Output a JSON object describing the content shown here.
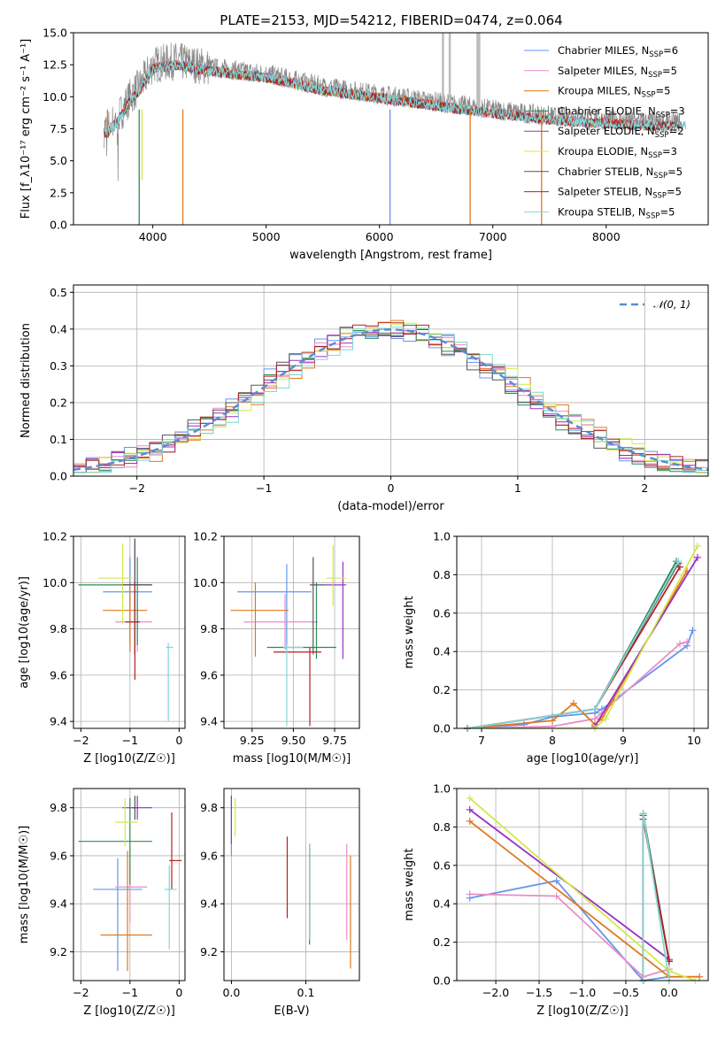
{
  "colors": [
    "#6495ed",
    "#e88ec8",
    "#e0781e",
    "#2e8b57",
    "#9b30c0",
    "#d4e84a",
    "#555555",
    "#b22222",
    "#7fd8d8"
  ],
  "title": "PLATE=2153, MJD=54212, FIBERID=0474, z=0.064",
  "chart_data": [
    {
      "id": "spectrum",
      "type": "line",
      "xlabel": "wavelength [Angstrom, rest frame]",
      "ylabel": "Flux [f_λ10⁻¹⁷ erg cm⁻² s⁻¹ A⁻¹]",
      "xlim": [
        3300,
        8900
      ],
      "ylim": [
        0,
        15
      ],
      "xticks": [
        4000,
        5000,
        6000,
        7000,
        8000
      ],
      "yticks": [
        0.0,
        2.5,
        5.0,
        7.5,
        10.0,
        12.5,
        15.0
      ],
      "grid": false,
      "legend_position": "top-right",
      "legend": [
        "Chabrier MILES, N_SSP=6",
        "Salpeter MILES, N_SSP=5",
        "Kroupa MILES, N_SSP=5",
        "Chabrier ELODIE, N_SSP=3",
        "Salpeter ELODIE, N_SSP=2",
        "Kroupa ELODIE, N_SSP=3",
        "Chabrier STELIB, N_SSP=5",
        "Salpeter STELIB, N_SSP=5",
        "Kroupa STELIB, N_SSP=5"
      ],
      "data_shape": {
        "x": [
          3600,
          3700,
          3800,
          3900,
          4000,
          4200,
          4500,
          5000,
          5500,
          6000,
          6500,
          7000,
          7500,
          8000,
          8500,
          8650
        ],
        "y": [
          7.5,
          8.5,
          10.0,
          11.0,
          12.5,
          12.8,
          12.3,
          11.8,
          10.8,
          10.2,
          9.6,
          9.0,
          8.5,
          8.2,
          8.0,
          8.0
        ]
      },
      "model_ranges": [
        {
          "x": [
            3570,
            8400
          ]
        },
        {
          "x": [
            3570,
            8400
          ]
        },
        {
          "x": [
            3570,
            8400
          ]
        },
        {
          "x": [
            4000,
            6800
          ]
        },
        {
          "x": [
            4000,
            6800
          ]
        },
        {
          "x": [
            4000,
            6800
          ]
        },
        {
          "x": [
            3570,
            8700
          ]
        },
        {
          "x": [
            3570,
            8700
          ]
        },
        {
          "x": [
            3570,
            8700
          ]
        }
      ]
    },
    {
      "id": "residuals",
      "type": "histogram",
      "xlabel": "(data-model)/error",
      "ylabel": "Normed distribution",
      "xlim": [
        -2.5,
        2.5
      ],
      "ylim": [
        0,
        0.52
      ],
      "xticks": [
        -2,
        -1,
        0,
        1,
        2
      ],
      "yticks": [
        0.0,
        0.1,
        0.2,
        0.3,
        0.4,
        0.5
      ],
      "grid": true,
      "legend_position": "top-right",
      "legend": [
        "𝒩(0, 1)"
      ],
      "reference_curve": "normal(0,1)"
    },
    {
      "id": "age-vs-Z",
      "type": "errorbar",
      "xlabel": "Z [log10(Z/Z☉)]",
      "ylabel": "age [log10(age/yr)]",
      "xlim": [
        -2.15,
        0.12
      ],
      "ylim": [
        9.37,
        10.2
      ],
      "xticks": [
        -2,
        -1,
        0
      ],
      "yticks": [
        9.4,
        9.6,
        9.8,
        10.0,
        10.2
      ],
      "grid": true,
      "points": [
        {
          "x": -1.0,
          "y": 9.96,
          "xerr": [
            0.55,
            0.45
          ],
          "yerr": [
            0.22,
            0.15
          ]
        },
        {
          "x": -0.85,
          "y": 9.83,
          "xerr": [
            0.45,
            0.3
          ],
          "yerr": [
            0.13,
            0.1
          ]
        },
        {
          "x": -1.0,
          "y": 9.88,
          "xerr": [
            0.55,
            0.35
          ],
          "yerr": [
            0.18,
            0.1
          ]
        },
        {
          "x": -0.85,
          "y": 9.99,
          "xerr": [
            1.2,
            0.3
          ],
          "yerr": [
            0.26,
            0.12
          ]
        },
        {
          "x": -0.9,
          "y": 9.99,
          "xerr": [
            0.25,
            0.15
          ],
          "yerr": [
            0.3,
            0.2
          ]
        },
        {
          "x": -1.15,
          "y": 10.02,
          "xerr": [
            0.5,
            0.2
          ],
          "yerr": [
            0.2,
            0.15
          ]
        },
        {
          "x": -0.9,
          "y": 9.99,
          "xerr": [
            0.25,
            0.35
          ],
          "yerr": [
            0.3,
            0.2
          ]
        },
        {
          "x": -0.9,
          "y": 9.83,
          "xerr": [
            0.2,
            0.1
          ],
          "yerr": [
            0.25,
            0.17
          ]
        },
        {
          "x": -0.22,
          "y": 9.72,
          "xerr": [
            0.05,
            0.1
          ],
          "yerr": [
            0.32,
            0.02
          ]
        }
      ]
    },
    {
      "id": "age-vs-mass",
      "type": "errorbar",
      "xlabel": "mass [log10(M/M☉)]",
      "ylabel": "",
      "xlim": [
        9.08,
        9.9
      ],
      "ylim": [
        9.37,
        10.2
      ],
      "xticks": [
        9.25,
        9.5,
        9.75
      ],
      "yticks": [
        9.4,
        9.6,
        9.8,
        10.0,
        10.2
      ],
      "grid": true,
      "points": [
        {
          "x": 9.46,
          "y": 9.96,
          "xerr": [
            0.3,
            0.15
          ],
          "yerr": [
            0.25,
            0.12
          ]
        },
        {
          "x": 9.45,
          "y": 9.83,
          "xerr": [
            0.25,
            0.2
          ],
          "yerr": [
            0.12,
            0.12
          ]
        },
        {
          "x": 9.27,
          "y": 9.88,
          "xerr": [
            0.15,
            0.2
          ],
          "yerr": [
            0.2,
            0.12
          ]
        },
        {
          "x": 9.64,
          "y": 9.72,
          "xerr": [
            0.3,
            0.12
          ],
          "yerr": [
            0.05,
            0.28
          ]
        },
        {
          "x": 9.8,
          "y": 9.99,
          "xerr": [
            0.1,
            0.02
          ],
          "yerr": [
            0.32,
            0.1
          ]
        },
        {
          "x": 9.74,
          "y": 10.02,
          "xerr": [
            0.04,
            0.08
          ],
          "yerr": [
            0.12,
            0.14
          ]
        },
        {
          "x": 9.62,
          "y": 9.99,
          "xerr": [
            0.02,
            0.08
          ],
          "yerr": [
            0.3,
            0.12
          ]
        },
        {
          "x": 9.6,
          "y": 9.7,
          "xerr": [
            0.22,
            0.07
          ],
          "yerr": [
            0.32,
            0.02
          ]
        },
        {
          "x": 9.46,
          "y": 9.72,
          "xerr": [
            0.02,
            0.1
          ],
          "yerr": [
            0.34,
            0.01
          ]
        }
      ]
    },
    {
      "id": "weight-vs-age",
      "type": "line",
      "xlabel": "age [log10(age/yr)]",
      "ylabel": "mass weight",
      "xlim": [
        6.65,
        10.2
      ],
      "ylim": [
        0,
        1.0
      ],
      "xticks": [
        7,
        8,
        9,
        10
      ],
      "yticks": [
        0.0,
        0.2,
        0.4,
        0.6,
        0.8,
        1.0
      ],
      "grid": true,
      "series": [
        {
          "x": [
            6.8,
            7.6,
            8.0,
            8.6,
            8.7,
            9.9,
            9.98
          ],
          "y": [
            0.0,
            0.02,
            0.06,
            0.08,
            0.1,
            0.43,
            0.51
          ]
        },
        {
          "x": [
            6.8,
            8.0,
            8.6,
            8.7,
            9.8,
            9.9
          ],
          "y": [
            0.0,
            0.01,
            0.05,
            0.08,
            0.44,
            0.45
          ]
        },
        {
          "x": [
            6.8,
            8.0,
            8.3,
            8.6,
            8.7,
            9.9
          ],
          "y": [
            0.0,
            0.04,
            0.13,
            0.02,
            0.05,
            0.82
          ]
        },
        {
          "x": [
            6.8,
            8.6,
            9.75
          ],
          "y": [
            0.0,
            0.1,
            0.87
          ]
        },
        {
          "x": [
            8.6,
            10.05
          ],
          "y": [
            0.01,
            0.89
          ]
        },
        {
          "x": [
            6.8,
            8.6,
            8.75,
            10.05
          ],
          "y": [
            0.0,
            0.0,
            0.05,
            0.95
          ]
        },
        {
          "x": [
            6.8,
            8.6,
            9.78
          ],
          "y": [
            0.0,
            0.1,
            0.86
          ]
        },
        {
          "x": [
            6.8,
            8.6,
            9.8
          ],
          "y": [
            0.0,
            0.1,
            0.84
          ]
        },
        {
          "x": [
            6.8,
            8.6,
            9.78
          ],
          "y": [
            0.0,
            0.1,
            0.87
          ]
        }
      ]
    },
    {
      "id": "mass-vs-Z",
      "type": "errorbar",
      "xlabel": "Z [log10(Z/Z☉)]",
      "ylabel": "mass [log10(M/M☉)]",
      "xlim": [
        -2.15,
        0.12
      ],
      "ylim": [
        9.08,
        9.88
      ],
      "xticks": [
        -2,
        -1,
        0
      ],
      "yticks": [
        9.2,
        9.4,
        9.6,
        9.8
      ],
      "grid": true,
      "points": [
        {
          "x": -1.25,
          "y": 9.46,
          "xerr": [
            0.5,
            0.5
          ],
          "yerr": [
            0.34,
            0.13
          ]
        },
        {
          "x": -1.0,
          "y": 9.47,
          "xerr": [
            0.3,
            0.35
          ],
          "yerr": [
            0.15,
            0.15
          ]
        },
        {
          "x": -1.05,
          "y": 9.27,
          "xerr": [
            0.55,
            0.5
          ],
          "yerr": [
            0.15,
            0.35
          ]
        },
        {
          "x": -1.0,
          "y": 9.66,
          "xerr": [
            1.05,
            0.45
          ],
          "yerr": [
            0.18,
            0.18
          ]
        },
        {
          "x": -0.85,
          "y": 9.8,
          "xerr": [
            0.3,
            0.3
          ],
          "yerr": [
            0.05,
            0.05
          ]
        },
        {
          "x": -1.1,
          "y": 9.74,
          "xerr": [
            0.2,
            0.25
          ],
          "yerr": [
            0.1,
            0.1
          ]
        },
        {
          "x": -0.9,
          "y": 9.8,
          "xerr": [
            0.05,
            0.05
          ],
          "yerr": [
            0.05,
            0.05
          ]
        },
        {
          "x": -0.15,
          "y": 9.58,
          "xerr": [
            0.05,
            0.2
          ],
          "yerr": [
            0.12,
            0.2
          ]
        },
        {
          "x": -0.2,
          "y": 9.46,
          "xerr": [
            0.1,
            0.15
          ],
          "yerr": [
            0.25,
            0.1
          ]
        }
      ]
    },
    {
      "id": "mass-vs-EBV",
      "type": "errorbar",
      "xlabel": "E(B-V)",
      "ylabel": "",
      "xlim": [
        -0.01,
        0.172
      ],
      "ylim": [
        9.08,
        9.88
      ],
      "xticks": [
        0.0,
        0.1
      ],
      "yticks": [
        9.2,
        9.4,
        9.6,
        9.8
      ],
      "grid": true,
      "points": [
        {
          "x": 0.0,
          "y": 9.7,
          "xerr": [
            0,
            0
          ],
          "yerr": [
            0.1,
            0.15
          ]
        },
        {
          "x": 0.155,
          "y": 9.45,
          "xerr": [
            0,
            0
          ],
          "yerr": [
            0.2,
            0.2
          ]
        },
        {
          "x": 0.16,
          "y": 9.35,
          "xerr": [
            0,
            0
          ],
          "yerr": [
            0.22,
            0.25
          ]
        },
        {
          "x": 0.105,
          "y": 9.43,
          "xerr": [
            0,
            0
          ],
          "yerr": [
            0.2,
            0.2
          ]
        },
        {
          "x": 0.0,
          "y": 9.75,
          "xerr": [
            0,
            0
          ],
          "yerr": [
            0.1,
            0.1
          ]
        },
        {
          "x": 0.005,
          "y": 9.76,
          "xerr": [
            0,
            0
          ],
          "yerr": [
            0.08,
            0.08
          ]
        },
        {
          "x": 0.105,
          "y": 9.45,
          "xerr": [
            0,
            0
          ],
          "yerr": [
            0.2,
            0.2
          ]
        },
        {
          "x": 0.075,
          "y": 9.51,
          "xerr": [
            0,
            0
          ],
          "yerr": [
            0.17,
            0.17
          ]
        },
        {
          "x": 0.105,
          "y": 9.45,
          "xerr": [
            0,
            0
          ],
          "yerr": [
            0.2,
            0.2
          ]
        }
      ]
    },
    {
      "id": "weight-vs-Z",
      "type": "line",
      "xlabel": "Z [log10(Z/Z☉)]",
      "ylabel": "mass weight",
      "xlim": [
        -2.45,
        0.45
      ],
      "ylim": [
        0,
        1.0
      ],
      "xticks": [
        -2.0,
        -1.5,
        -1.0,
        -0.5,
        0.0
      ],
      "yticks": [
        0.0,
        0.2,
        0.4,
        0.6,
        0.8,
        1.0
      ],
      "grid": true,
      "series": [
        {
          "x": [
            -2.3,
            -1.3,
            -0.3,
            0.0
          ],
          "y": [
            0.43,
            0.52,
            0.0,
            0.02
          ]
        },
        {
          "x": [
            -2.3,
            -1.3,
            -0.3,
            0.0
          ],
          "y": [
            0.45,
            0.44,
            0.02,
            0.06
          ]
        },
        {
          "x": [
            -2.3,
            0.0,
            0.35
          ],
          "y": [
            0.83,
            0.02,
            0.02
          ]
        },
        {
          "x": [
            -0.3,
            -0.3,
            0.0
          ],
          "y": [
            0.0,
            0.87,
            0.1
          ]
        },
        {
          "x": [
            -2.3,
            0.0
          ],
          "y": [
            0.89,
            0.11
          ]
        },
        {
          "x": [
            -2.3,
            0.0,
            0.3
          ],
          "y": [
            0.95,
            0.05,
            0.0
          ]
        },
        {
          "x": [
            -0.3,
            -0.3,
            0.0
          ],
          "y": [
            0.0,
            0.86,
            0.1
          ]
        },
        {
          "x": [
            -0.3,
            -0.3,
            0.0
          ],
          "y": [
            0.0,
            0.84,
            0.1
          ]
        },
        {
          "x": [
            -0.3,
            -0.3,
            0.0
          ],
          "y": [
            0.0,
            0.87,
            0.0
          ]
        }
      ]
    }
  ]
}
